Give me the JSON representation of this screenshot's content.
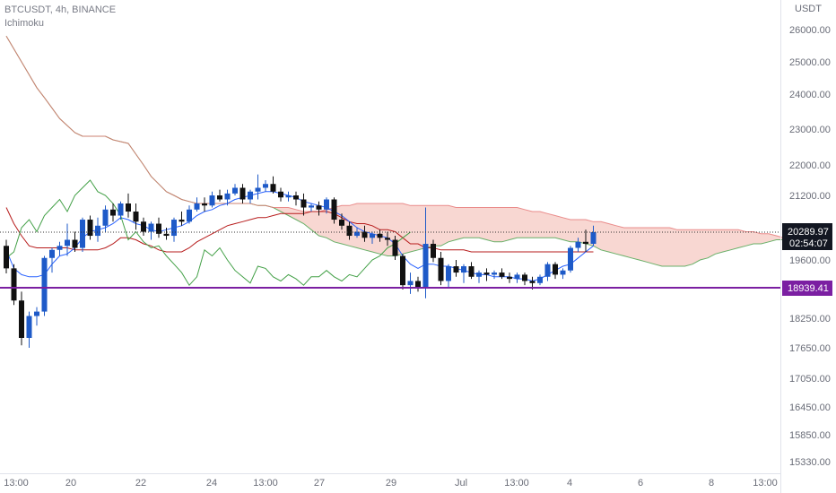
{
  "header": {
    "symbol_line": "BTCUSDT, 4h, BINANCE",
    "indicator": "Ichimoku"
  },
  "chart_data": {
    "type": "candlestick",
    "symbol": "BTCUSDT",
    "interval": "4h",
    "exchange": "BINANCE",
    "indicator": "Ichimoku",
    "currency_label": "USDT",
    "y_axis_ticks": [
      26000,
      25000,
      24000,
      23000,
      22000,
      21200,
      19600,
      18250,
      17650,
      17050,
      16450,
      15850,
      15330
    ],
    "y_axis_tick_labels": [
      "26000.00",
      "25000.00",
      "24000.00",
      "23000.00",
      "22000.00",
      "21200.00",
      "19600.00",
      "18250.00",
      "17650.00",
      "17050.00",
      "16450.00",
      "15850.00",
      "15330.00"
    ],
    "x_axis_labels": [
      "13:00",
      "20",
      "22",
      "24",
      "13:00",
      "27",
      "29",
      "Jul",
      "13:00",
      "4",
      "6",
      "8",
      "13:00"
    ],
    "last_price": "20289.97",
    "countdown": "02:54:07",
    "horizontal_line": "18939.41",
    "grid": false,
    "colors": {
      "up_candle": "#1e5ac8",
      "down_candle": "#111111",
      "tenkan": "#2962ff",
      "kijun": "#b71c1c",
      "span_a": "#43a047",
      "span_b": "#e57373",
      "bear_cloud": "#f6c9c3",
      "bull_cloud": "#dcefd8",
      "support_line": "#7b1fa2",
      "last_price_tag": "#131722",
      "support_tag": "#7b1fa2"
    },
    "candles": [
      [
        19950,
        20100,
        19280,
        19400
      ],
      [
        19400,
        19500,
        18550,
        18650
      ],
      [
        18650,
        18850,
        17700,
        17850
      ],
      [
        17850,
        18400,
        17650,
        18300
      ],
      [
        18300,
        18500,
        18100,
        18400
      ],
      [
        18400,
        19700,
        18300,
        19650
      ],
      [
        19650,
        19900,
        19300,
        19850
      ],
      [
        19850,
        20050,
        19700,
        19950
      ],
      [
        19950,
        20500,
        19700,
        20100
      ],
      [
        20100,
        20300,
        19800,
        19900
      ],
      [
        19900,
        20650,
        19800,
        20600
      ],
      [
        20600,
        20700,
        20100,
        20200
      ],
      [
        20200,
        20650,
        20050,
        20450
      ],
      [
        20450,
        20950,
        20300,
        20850
      ],
      [
        20850,
        21000,
        20550,
        20700
      ],
      [
        20700,
        21050,
        20600,
        21000
      ],
      [
        21000,
        21250,
        20650,
        20800
      ],
      [
        20800,
        21000,
        20350,
        20550
      ],
      [
        20550,
        20650,
        20200,
        20300
      ],
      [
        20300,
        20550,
        20100,
        20500
      ],
      [
        20500,
        20650,
        20150,
        20250
      ],
      [
        20250,
        20400,
        20100,
        20200
      ],
      [
        20200,
        20650,
        20050,
        20600
      ],
      [
        20600,
        20800,
        20450,
        20550
      ],
      [
        20550,
        20950,
        20500,
        20850
      ],
      [
        20850,
        21150,
        20800,
        21000
      ],
      [
        21000,
        21150,
        20800,
        20950
      ],
      [
        20950,
        21300,
        20900,
        21200
      ],
      [
        21200,
        21350,
        21050,
        21100
      ],
      [
        21100,
        21350,
        20950,
        21250
      ],
      [
        21250,
        21500,
        21200,
        21400
      ],
      [
        21400,
        21500,
        21000,
        21100
      ],
      [
        21100,
        21350,
        21000,
        21300
      ],
      [
        21300,
        21750,
        21100,
        21400
      ],
      [
        21400,
        21600,
        21300,
        21500
      ],
      [
        21500,
        21700,
        21250,
        21300
      ],
      [
        21300,
        21400,
        21050,
        21150
      ],
      [
        21150,
        21300,
        21050,
        21200
      ],
      [
        21200,
        21300,
        20950,
        21100
      ],
      [
        21100,
        21250,
        20700,
        20900
      ],
      [
        20900,
        21000,
        20800,
        20950
      ],
      [
        20950,
        21050,
        20700,
        20850
      ],
      [
        20850,
        21150,
        20750,
        21100
      ],
      [
        21100,
        21150,
        20500,
        20600
      ],
      [
        20600,
        20750,
        20350,
        20450
      ],
      [
        20450,
        20550,
        20100,
        20200
      ],
      [
        20200,
        20400,
        20150,
        20300
      ],
      [
        20300,
        20450,
        20050,
        20150
      ],
      [
        20150,
        20300,
        20000,
        20250
      ],
      [
        20250,
        20350,
        20050,
        20150
      ],
      [
        20150,
        20300,
        19950,
        20100
      ],
      [
        20100,
        20200,
        19600,
        19700
      ],
      [
        19700,
        19750,
        18900,
        19000
      ],
      [
        19000,
        19300,
        18800,
        19100
      ],
      [
        19100,
        19200,
        18850,
        18950
      ],
      [
        18950,
        20900,
        18700,
        20000
      ],
      [
        20000,
        20100,
        19550,
        19650
      ],
      [
        19650,
        19800,
        19000,
        19100
      ],
      [
        19100,
        19500,
        18950,
        19450
      ],
      [
        19450,
        19600,
        19200,
        19300
      ],
      [
        19300,
        19500,
        19050,
        19450
      ],
      [
        19450,
        19550,
        19150,
        19200
      ],
      [
        19200,
        19350,
        19050,
        19300
      ],
      [
        19300,
        19400,
        19100,
        19250
      ],
      [
        19250,
        19350,
        19150,
        19300
      ],
      [
        19300,
        19400,
        19150,
        19200
      ],
      [
        19200,
        19300,
        19050,
        19150
      ],
      [
        19150,
        19300,
        19050,
        19250
      ],
      [
        19250,
        19300,
        19000,
        19100
      ],
      [
        19100,
        19200,
        18900,
        19050
      ],
      [
        19050,
        19250,
        19000,
        19200
      ],
      [
        19200,
        19550,
        19100,
        19500
      ],
      [
        19500,
        19550,
        19150,
        19250
      ],
      [
        19250,
        19400,
        19150,
        19350
      ],
      [
        19350,
        19950,
        19300,
        19900
      ],
      [
        19900,
        20150,
        19800,
        20050
      ],
      [
        20050,
        20350,
        19800,
        20000
      ],
      [
        20000,
        20450,
        19950,
        20289.97
      ]
    ],
    "tenkan": [
      19850,
      19400,
      19250,
      19200,
      19200,
      19250,
      19500,
      19700,
      19750,
      19900,
      20150,
      20300,
      20350,
      20400,
      20500,
      20650,
      20600,
      20500,
      20450,
      20350,
      20300,
      20350,
      20400,
      20450,
      20550,
      20700,
      20800,
      20850,
      20950,
      21000,
      21100,
      21150,
      21200,
      21250,
      21300,
      21300,
      21250,
      21200,
      21150,
      21050,
      21000,
      20950,
      20900,
      20800,
      20700,
      20550,
      20400,
      20300,
      20250,
      20200,
      20150,
      20000,
      19700,
      19500,
      19400,
      19500,
      19500,
      19450,
      19450,
      19400,
      19350,
      19300,
      19250,
      19250,
      19200,
      19200,
      19200,
      19150,
      19150,
      19100,
      19150,
      19250,
      19350,
      19450,
      19500,
      19650,
      19800,
      19950
    ],
    "kijun": [
      20900,
      20500,
      20200,
      19950,
      19900,
      19900,
      19900,
      19900,
      19900,
      19850,
      19850,
      19850,
      19850,
      19900,
      20000,
      20150,
      20150,
      20100,
      20000,
      19950,
      19850,
      19800,
      19800,
      19800,
      19900,
      20050,
      20150,
      20250,
      20350,
      20450,
      20500,
      20550,
      20600,
      20650,
      20650,
      20700,
      20750,
      20750,
      20750,
      20750,
      20800,
      20800,
      20800,
      20750,
      20650,
      20550,
      20500,
      20500,
      20450,
      20350,
      20350,
      20300,
      20150,
      20000,
      20000,
      19900,
      19900,
      19850,
      19850,
      19850,
      19850,
      19800,
      19800,
      19800,
      19800,
      19800,
      19800,
      19800,
      19800,
      19800,
      19800,
      19800,
      19800,
      19800,
      19800,
      19800,
      19800,
      19800
    ],
    "chikou": [
      19650,
      19800,
      20400,
      20600,
      20300,
      20700,
      20900,
      21100,
      20800,
      21200,
      21400,
      21600,
      21300,
      21200,
      21000,
      20700,
      20100,
      20300,
      20050,
      19900,
      19950,
      19700,
      19500,
      19300,
      19000,
      19200,
      19850,
      19700,
      19900,
      19600,
      19350,
      19200,
      19050,
      19450,
      19400,
      19200,
      19100,
      19250,
      19150,
      19000,
      19200,
      19200,
      19350,
      19200,
      19100,
      19250,
      19200,
      19400,
      19600,
      19700,
      19900,
      20000,
      20150,
      20289.97
    ],
    "span_a": [
      25800,
      25400,
      25000,
      24600,
      24200,
      23900,
      23600,
      23300,
      23100,
      22900,
      22800,
      22800,
      22800,
      22800,
      22700,
      22650,
      22600,
      22300,
      22000,
      21700,
      21500,
      21300,
      21200,
      21100,
      21050,
      21000,
      21000,
      21000,
      21000,
      21000,
      21000,
      21000,
      21000,
      20950,
      20950,
      20900,
      20800,
      20700,
      20600,
      20500,
      20350,
      20200,
      20150,
      20050,
      20000,
      19950,
      19900,
      19850,
      19800,
      19750,
      19700,
      19700,
      19750,
      19800,
      19850,
      19900,
      19950,
      19950,
      20050,
      20100,
      20150,
      20150,
      20150,
      20100,
      20050,
      20050,
      20100,
      20150,
      20150,
      20150,
      20150,
      20150,
      20150,
      20100,
      20050,
      20050,
      20000,
      19950,
      19850,
      19800,
      19750,
      19700,
      19650,
      19600,
      19550,
      19500,
      19450,
      19450,
      19450,
      19450,
      19500,
      19600,
      19650,
      19750,
      19800,
      19850,
      19900,
      19950,
      20000,
      20000,
      20050,
      20100,
      20100,
      20100
    ],
    "span_b": [
      25800,
      25400,
      25000,
      24600,
      24200,
      23900,
      23600,
      23300,
      23100,
      22900,
      22800,
      22800,
      22800,
      22800,
      22700,
      22650,
      22600,
      22300,
      22000,
      21700,
      21500,
      21300,
      21200,
      21100,
      21050,
      21000,
      21000,
      21000,
      21000,
      21000,
      21000,
      21000,
      21000,
      20950,
      20950,
      20900,
      20900,
      20900,
      20850,
      20800,
      20800,
      20800,
      20850,
      20900,
      20950,
      20950,
      21000,
      21000,
      21000,
      21000,
      21000,
      21000,
      21000,
      20950,
      20950,
      20950,
      20950,
      20950,
      20950,
      20900,
      20900,
      20900,
      20900,
      20900,
      20900,
      20900,
      20900,
      20900,
      20850,
      20800,
      20800,
      20750,
      20700,
      20650,
      20600,
      20600,
      20600,
      20550,
      20550,
      20500,
      20450,
      20400,
      20400,
      20400,
      20400,
      20400,
      20400,
      20400,
      20350,
      20350,
      20350,
      20350,
      20350,
      20350,
      20350,
      20350,
      20350,
      20300,
      20300,
      20250,
      20250,
      20200,
      20150,
      20100
    ]
  }
}
